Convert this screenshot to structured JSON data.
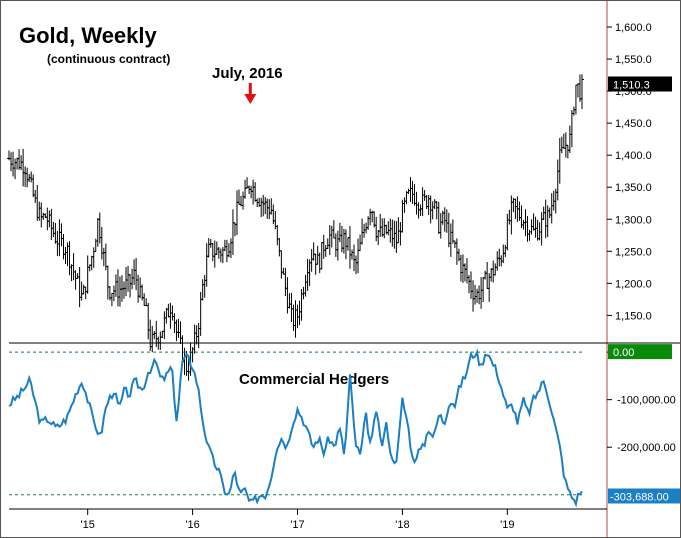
{
  "chart_data": [
    {
      "type": "bar",
      "subtype": "ohlc",
      "title": "Gold, Weekly",
      "subtitle": "(continuous contract)",
      "annotation": {
        "text": "July, 2016",
        "x": 2016.55
      },
      "x_ticks": [
        {
          "x": 2015.0,
          "label": "'15"
        },
        {
          "x": 2016.0,
          "label": "'16"
        },
        {
          "x": 2017.0,
          "label": "'17"
        },
        {
          "x": 2018.0,
          "label": "'18"
        },
        {
          "x": 2019.0,
          "label": "'19"
        }
      ],
      "xlim": [
        2014.25,
        2019.95
      ],
      "ylim": [
        1110,
        1625
      ],
      "y_ticks": [
        "1,150.0",
        "1,200.0",
        "1,250.0",
        "1,300.0",
        "1,350.0",
        "1,400.0",
        "1,450.0",
        "1,500.0",
        "1,550.0",
        "1,600.0"
      ],
      "last_price_label": "1,510.3",
      "last_price": 1510.3,
      "closes": [
        [
          2014.25,
          1395
        ],
        [
          2014.4,
          1385
        ],
        [
          2014.5,
          1325
        ],
        [
          2014.55,
          1300
        ],
        [
          2014.6,
          1305
        ],
        [
          2014.7,
          1270
        ],
        [
          2014.8,
          1255
        ],
        [
          2014.9,
          1200
        ],
        [
          2014.95,
          1175
        ],
        [
          2015.0,
          1215
        ],
        [
          2015.05,
          1250
        ],
        [
          2015.1,
          1300
        ],
        [
          2015.15,
          1245
        ],
        [
          2015.2,
          1190
        ],
        [
          2015.3,
          1190
        ],
        [
          2015.4,
          1200
        ],
        [
          2015.45,
          1215
        ],
        [
          2015.5,
          1180
        ],
        [
          2015.55,
          1160
        ],
        [
          2015.6,
          1105
        ],
        [
          2015.7,
          1125
        ],
        [
          2015.8,
          1170
        ],
        [
          2015.85,
          1120
        ],
        [
          2015.95,
          1065
        ],
        [
          2016.0,
          1095
        ],
        [
          2016.05,
          1130
        ],
        [
          2016.1,
          1200
        ],
        [
          2016.15,
          1250
        ],
        [
          2016.3,
          1250
        ],
        [
          2016.35,
          1265
        ],
        [
          2016.4,
          1300
        ],
        [
          2016.45,
          1325
        ],
        [
          2016.5,
          1335
        ],
        [
          2016.55,
          1360
        ],
        [
          2016.6,
          1340
        ],
        [
          2016.65,
          1330
        ],
        [
          2016.7,
          1320
        ],
        [
          2016.75,
          1315
        ],
        [
          2016.8,
          1270
        ],
        [
          2016.85,
          1220
        ],
        [
          2016.9,
          1180
        ],
        [
          2016.95,
          1140
        ],
        [
          2017.0,
          1150
        ],
        [
          2017.05,
          1190
        ],
        [
          2017.1,
          1235
        ],
        [
          2017.15,
          1250
        ],
        [
          2017.2,
          1230
        ],
        [
          2017.25,
          1260
        ],
        [
          2017.3,
          1275
        ],
        [
          2017.35,
          1265
        ],
        [
          2017.4,
          1260
        ],
        [
          2017.45,
          1270
        ],
        [
          2017.5,
          1250
        ],
        [
          2017.55,
          1225
        ],
        [
          2017.6,
          1260
        ],
        [
          2017.65,
          1295
        ],
        [
          2017.7,
          1325
        ],
        [
          2017.75,
          1285
        ],
        [
          2017.8,
          1275
        ],
        [
          2017.85,
          1280
        ],
        [
          2017.9,
          1275
        ],
        [
          2017.95,
          1265
        ],
        [
          2018.0,
          1310
        ],
        [
          2018.05,
          1335
        ],
        [
          2018.1,
          1340
        ],
        [
          2018.15,
          1330
        ],
        [
          2018.2,
          1325
        ],
        [
          2018.25,
          1335
        ],
        [
          2018.3,
          1320
        ],
        [
          2018.35,
          1290
        ],
        [
          2018.4,
          1300
        ],
        [
          2018.45,
          1270
        ],
        [
          2018.5,
          1255
        ],
        [
          2018.55,
          1230
        ],
        [
          2018.6,
          1215
        ],
        [
          2018.65,
          1195
        ],
        [
          2018.7,
          1180
        ],
        [
          2018.75,
          1190
        ],
        [
          2018.8,
          1205
        ],
        [
          2018.85,
          1215
        ],
        [
          2018.9,
          1230
        ],
        [
          2018.95,
          1245
        ],
        [
          2019.0,
          1285
        ],
        [
          2019.05,
          1320
        ],
        [
          2019.1,
          1310
        ],
        [
          2019.15,
          1300
        ],
        [
          2019.2,
          1290
        ],
        [
          2019.25,
          1280
        ],
        [
          2019.3,
          1285
        ],
        [
          2019.35,
          1300
        ],
        [
          2019.4,
          1305
        ],
        [
          2019.45,
          1345
        ],
        [
          2019.5,
          1395
        ],
        [
          2019.55,
          1415
        ],
        [
          2019.6,
          1425
        ],
        [
          2019.65,
          1510
        ],
        [
          2019.7,
          1500
        ],
        [
          2019.73,
          1510
        ]
      ]
    },
    {
      "type": "line",
      "title": "Commercial Hedgers",
      "y_ticks": [
        "0.00",
        "-100,000.00",
        "-200,000.00"
      ],
      "ylim": [
        -330000,
        15000
      ],
      "last_value_label": "-303,688.00",
      "zero_label": "0.00",
      "reference_lines": [
        0,
        -300000
      ],
      "series": [
        [
          2014.25,
          -110000
        ],
        [
          2014.35,
          -90000
        ],
        [
          2014.45,
          -60000
        ],
        [
          2014.55,
          -150000
        ],
        [
          2014.62,
          -140000
        ],
        [
          2014.7,
          -160000
        ],
        [
          2014.8,
          -140000
        ],
        [
          2014.9,
          -80000
        ],
        [
          2014.95,
          -60000
        ],
        [
          2015.0,
          -100000
        ],
        [
          2015.05,
          -140000
        ],
        [
          2015.12,
          -180000
        ],
        [
          2015.18,
          -110000
        ],
        [
          2015.25,
          -80000
        ],
        [
          2015.3,
          -120000
        ],
        [
          2015.35,
          -80000
        ],
        [
          2015.4,
          -90000
        ],
        [
          2015.45,
          -60000
        ],
        [
          2015.52,
          -80000
        ],
        [
          2015.58,
          -40000
        ],
        [
          2015.65,
          -20000
        ],
        [
          2015.7,
          -60000
        ],
        [
          2015.75,
          -50000
        ],
        [
          2015.8,
          -30000
        ],
        [
          2015.85,
          -150000
        ],
        [
          2015.9,
          -20000
        ],
        [
          2015.95,
          -10000
        ],
        [
          2016.0,
          -30000
        ],
        [
          2016.05,
          -70000
        ],
        [
          2016.1,
          -150000
        ],
        [
          2016.15,
          -200000
        ],
        [
          2016.2,
          -230000
        ],
        [
          2016.25,
          -250000
        ],
        [
          2016.3,
          -290000
        ],
        [
          2016.35,
          -300000
        ],
        [
          2016.4,
          -250000
        ],
        [
          2016.45,
          -300000
        ],
        [
          2016.5,
          -290000
        ],
        [
          2016.55,
          -320000
        ],
        [
          2016.6,
          -310000
        ],
        [
          2016.65,
          -300000
        ],
        [
          2016.7,
          -300000
        ],
        [
          2016.75,
          -260000
        ],
        [
          2016.8,
          -200000
        ],
        [
          2016.85,
          -180000
        ],
        [
          2016.9,
          -200000
        ],
        [
          2016.95,
          -150000
        ],
        [
          2017.0,
          -120000
        ],
        [
          2017.05,
          -140000
        ],
        [
          2017.1,
          -170000
        ],
        [
          2017.15,
          -200000
        ],
        [
          2017.2,
          -180000
        ],
        [
          2017.25,
          -210000
        ],
        [
          2017.3,
          -180000
        ],
        [
          2017.35,
          -200000
        ],
        [
          2017.4,
          -160000
        ],
        [
          2017.45,
          -220000
        ],
        [
          2017.5,
          -50000
        ],
        [
          2017.55,
          -190000
        ],
        [
          2017.6,
          -220000
        ],
        [
          2017.65,
          -130000
        ],
        [
          2017.7,
          -200000
        ],
        [
          2017.75,
          -120000
        ],
        [
          2017.8,
          -200000
        ],
        [
          2017.85,
          -150000
        ],
        [
          2017.9,
          -230000
        ],
        [
          2017.95,
          -220000
        ],
        [
          2018.0,
          -100000
        ],
        [
          2018.05,
          -150000
        ],
        [
          2018.1,
          -230000
        ],
        [
          2018.15,
          -210000
        ],
        [
          2018.2,
          -200000
        ],
        [
          2018.25,
          -160000
        ],
        [
          2018.3,
          -180000
        ],
        [
          2018.35,
          -130000
        ],
        [
          2018.4,
          -150000
        ],
        [
          2018.45,
          -100000
        ],
        [
          2018.5,
          -110000
        ],
        [
          2018.55,
          -70000
        ],
        [
          2018.6,
          -50000
        ],
        [
          2018.65,
          -10000
        ],
        [
          2018.7,
          0
        ],
        [
          2018.75,
          -30000
        ],
        [
          2018.8,
          5000
        ],
        [
          2018.85,
          -20000
        ],
        [
          2018.9,
          -40000
        ],
        [
          2018.95,
          -80000
        ],
        [
          2019.0,
          -120000
        ],
        [
          2019.05,
          -110000
        ],
        [
          2019.1,
          -150000
        ],
        [
          2019.15,
          -100000
        ],
        [
          2019.2,
          -130000
        ],
        [
          2019.25,
          -100000
        ],
        [
          2019.3,
          -80000
        ],
        [
          2019.35,
          -60000
        ],
        [
          2019.4,
          -100000
        ],
        [
          2019.45,
          -150000
        ],
        [
          2019.5,
          -200000
        ],
        [
          2019.55,
          -270000
        ],
        [
          2019.6,
          -300000
        ],
        [
          2019.65,
          -315000
        ],
        [
          2019.7,
          -290000
        ],
        [
          2019.73,
          -303688
        ]
      ]
    }
  ],
  "colors": {
    "price_bars": "#000000",
    "arrow": "#e01010",
    "hedgers_line": "#1a7fc4",
    "zero_badge": "#0a8a0a",
    "price_badge": "#000000",
    "value_badge": "#1a7fc4",
    "reference_dash": "#1e7a3a"
  }
}
